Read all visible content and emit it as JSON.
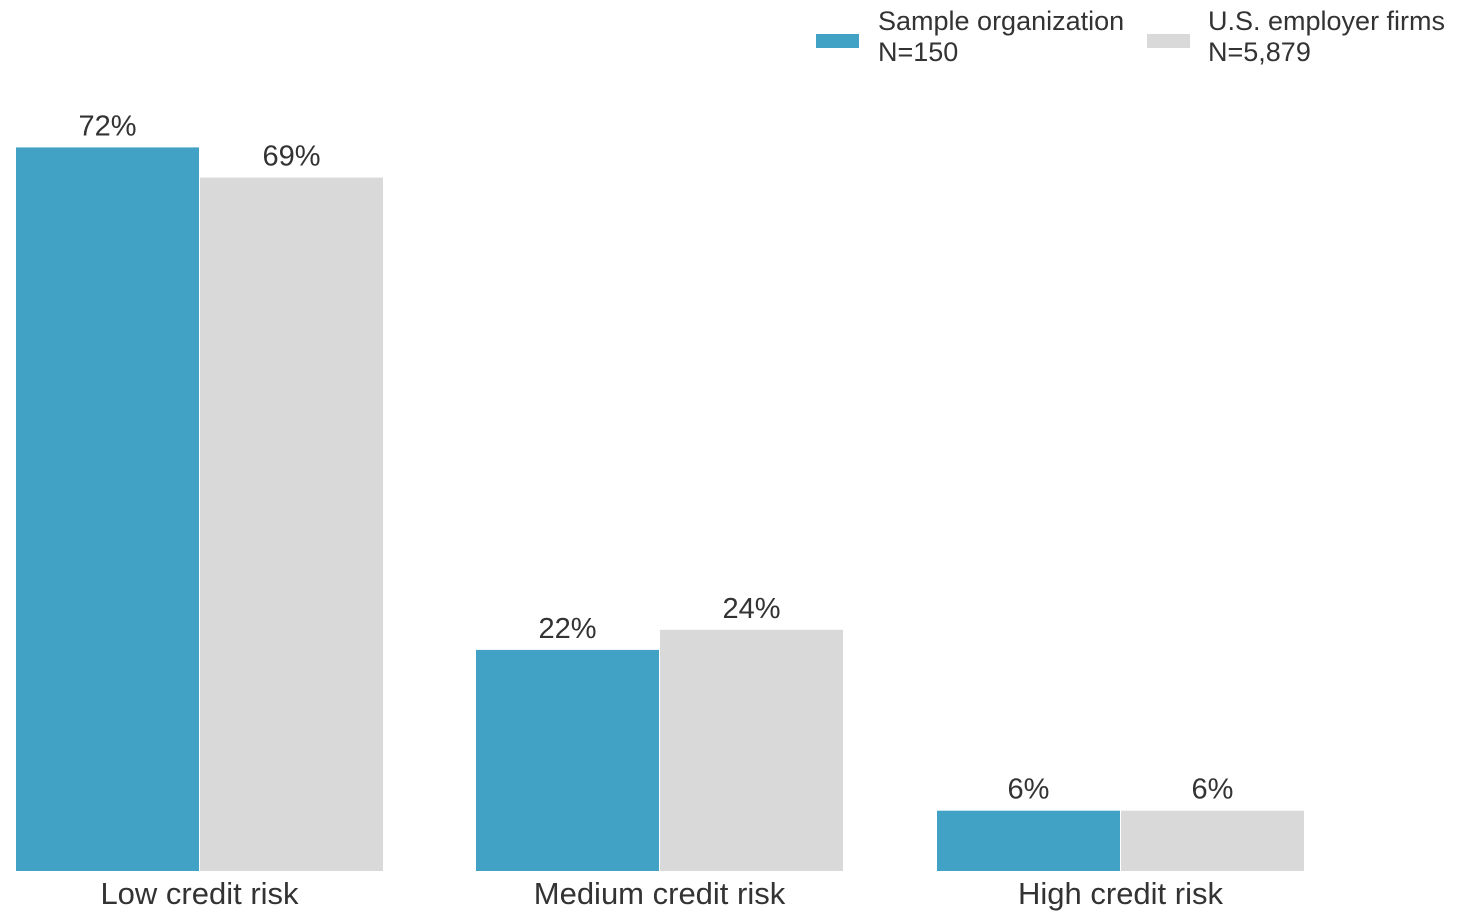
{
  "chart_data": {
    "type": "bar",
    "title": "",
    "xlabel": "",
    "ylabel": "",
    "ylim": [
      0,
      75
    ],
    "grid": false,
    "legend_position": "top-right",
    "categories": [
      "Low credit risk",
      "Medium credit risk",
      "High credit risk"
    ],
    "series": [
      {
        "name": "Sample organization",
        "legend_note": "N=150",
        "color": "#42a2c5",
        "values": [
          72,
          22,
          6
        ],
        "labels": [
          "72%",
          "22%",
          "6%"
        ]
      },
      {
        "name": "U.S. employer firms",
        "legend_note": "N=5,879",
        "color": "#d9d9d9",
        "values": [
          69,
          24,
          6
        ],
        "labels": [
          "69%",
          "24%",
          "6%"
        ]
      }
    ]
  }
}
